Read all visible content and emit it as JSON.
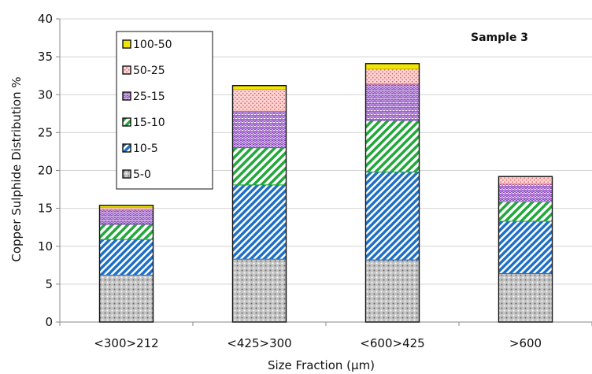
{
  "chart_data": {
    "type": "bar",
    "stacked": true,
    "annotation": "Sample 3",
    "xlabel": "Size Fraction (µm)",
    "ylabel": "Copper Sulphide Distribution %",
    "ylim": [
      0,
      40
    ],
    "yticks": [
      0,
      5,
      10,
      15,
      20,
      25,
      30,
      35,
      40
    ],
    "grid": true,
    "legend_position": "top-left",
    "categories": [
      "<300>212",
      "<425>300",
      "<600>425",
      ">600"
    ],
    "series": [
      {
        "name": "5-0",
        "values": [
          6.2,
          8.3,
          8.2,
          6.4
        ],
        "color": "#b8b8b8",
        "stroke": "#555555",
        "pattern": "dots"
      },
      {
        "name": "10-5",
        "values": [
          4.7,
          9.8,
          11.6,
          6.9
        ],
        "color": "#1f6fc4",
        "stroke": "#1f6fc4",
        "pattern": "diag-right"
      },
      {
        "name": "15-10",
        "values": [
          2.0,
          4.9,
          6.8,
          2.6
        ],
        "color": "#22a83a",
        "stroke": "#22a83a",
        "pattern": "diag-right"
      },
      {
        "name": "25-15",
        "values": [
          1.9,
          4.8,
          4.8,
          2.3
        ],
        "color": "#8a44c0",
        "stroke": "#8a44c0",
        "pattern": "wave"
      },
      {
        "name": "50-25",
        "values": [
          0.3,
          2.9,
          2.0,
          1.0
        ],
        "color": "#f08a8a",
        "stroke": "#e07070",
        "pattern": "dots"
      },
      {
        "name": "100-50",
        "values": [
          0.3,
          0.5,
          0.7,
          0.0
        ],
        "color": "#f2e600",
        "stroke": "#c9bf00",
        "pattern": "solid"
      }
    ]
  }
}
